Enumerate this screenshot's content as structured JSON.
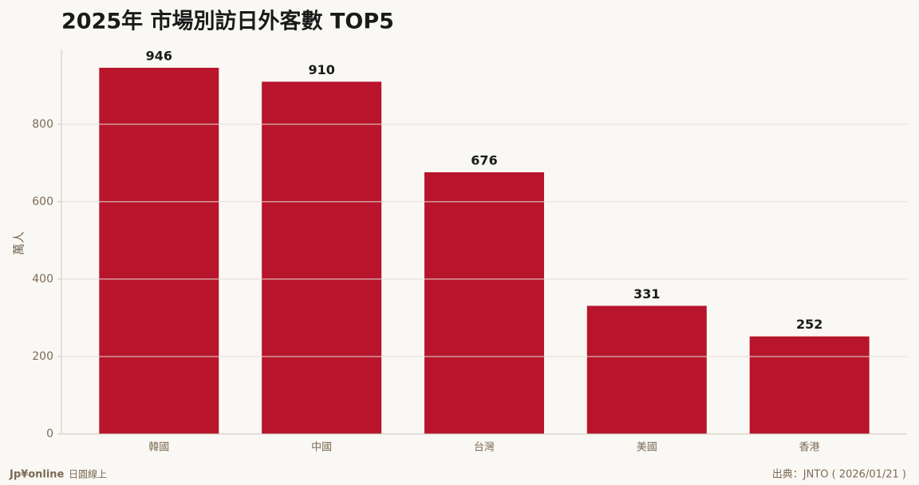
{
  "chart_data": {
    "type": "bar",
    "title": "2025年 市場別訪日外客數 TOP5",
    "y_label": "萬人",
    "categories": [
      "韓國",
      "中國",
      "台灣",
      "美國",
      "香港"
    ],
    "values": [
      946,
      910,
      676,
      331,
      252
    ],
    "color": "#b8152c",
    "ylim": [
      0,
      993.3
    ],
    "yticks": [
      0,
      200,
      400,
      600,
      800
    ],
    "grid": true,
    "brand": "Jp¥online",
    "brand_sub": "日圓線上",
    "source": "出典：JNTO ( 2026/01/21 )"
  }
}
